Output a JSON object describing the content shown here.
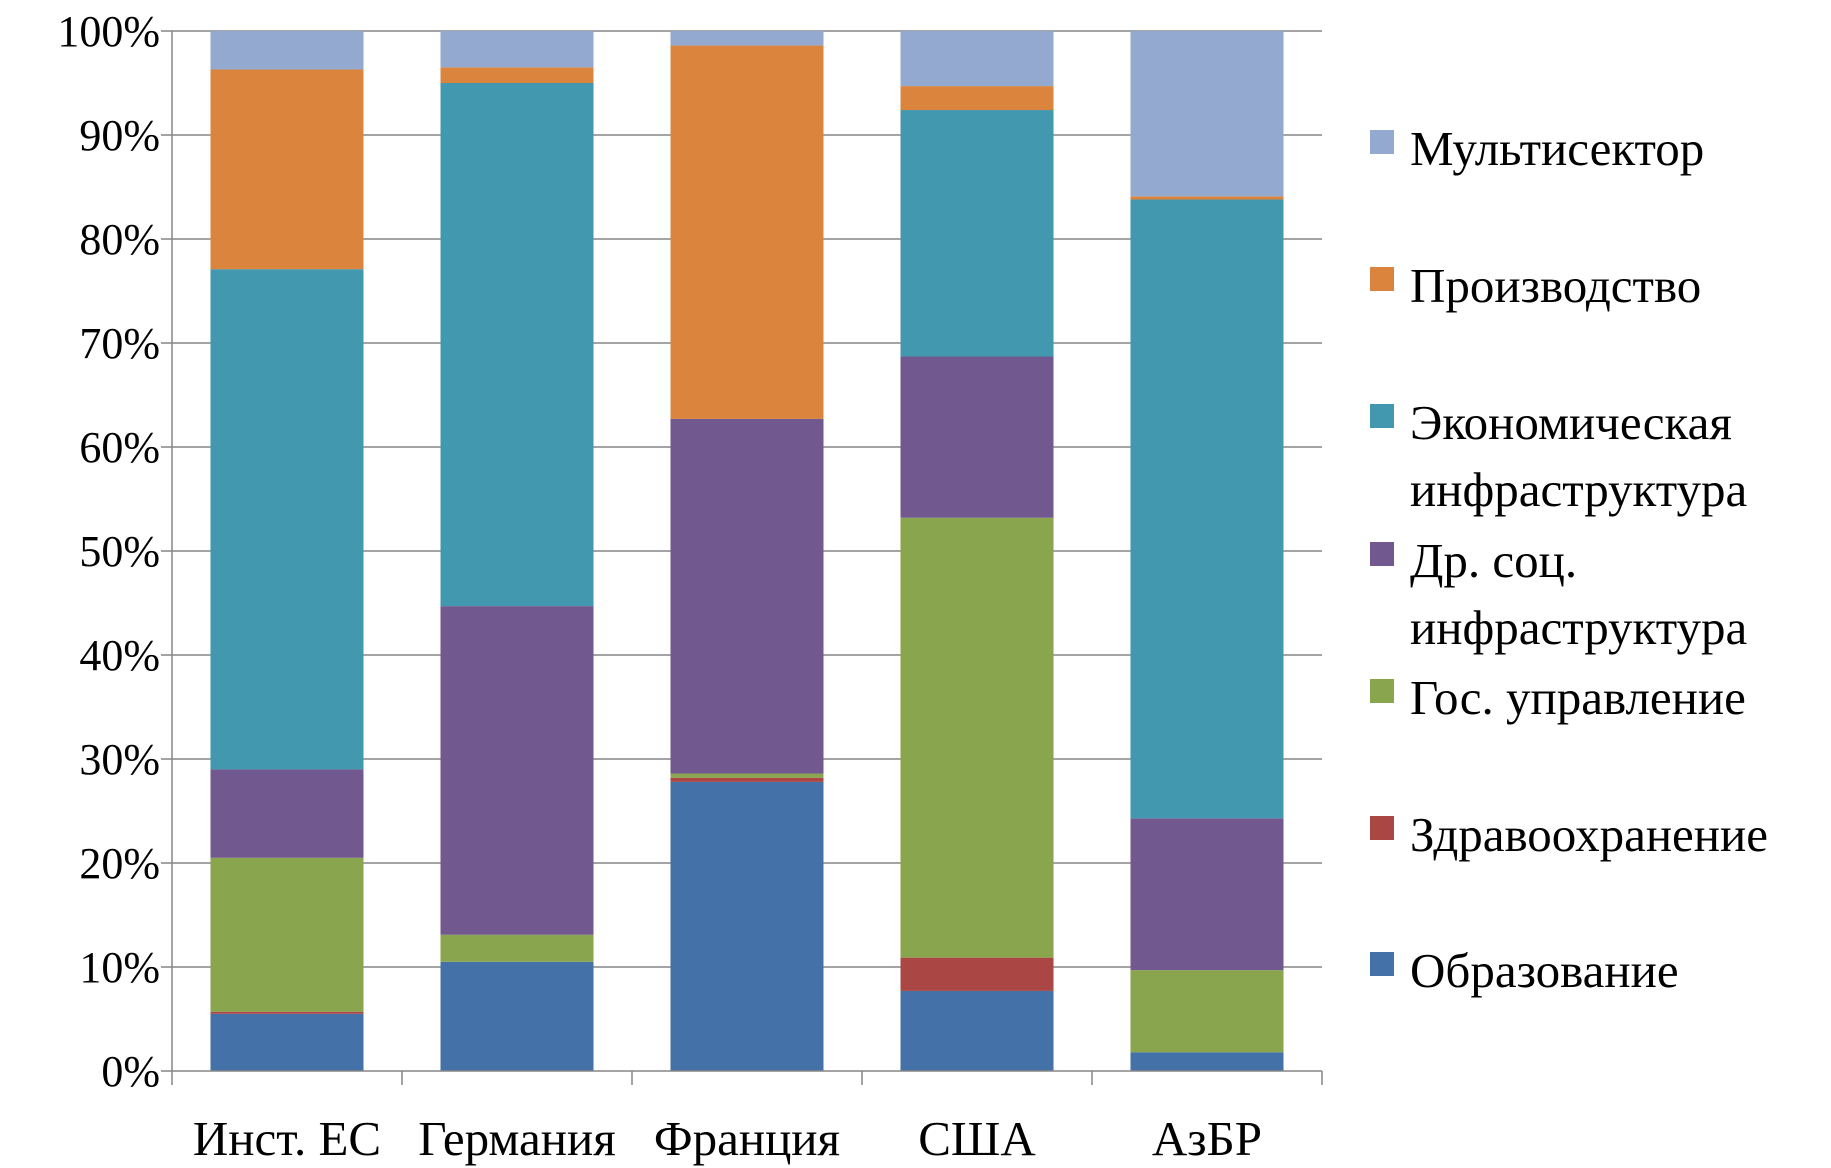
{
  "chart_data": {
    "type": "bar",
    "stacked": true,
    "percent": true,
    "categories": [
      "Инст. ЕС",
      "Германия",
      "Франция",
      "США",
      "АзБР"
    ],
    "ylim": [
      0,
      100
    ],
    "yticks": [
      "0%",
      "10%",
      "20%",
      "30%",
      "40%",
      "50%",
      "60%",
      "70%",
      "80%",
      "90%",
      "100%"
    ],
    "grid": true,
    "legend_position": "right",
    "series": [
      {
        "name": "Образование",
        "color": "#4472a8",
        "values": [
          5.5,
          10.5,
          27.8,
          7.7,
          1.8
        ]
      },
      {
        "name": "Здравоохранение",
        "color": "#aa4643",
        "values": [
          0.2,
          0.0,
          0.4,
          3.2,
          0.0
        ]
      },
      {
        "name": "Гос. управление",
        "color": "#89a54e",
        "values": [
          14.8,
          2.6,
          0.4,
          42.3,
          7.9
        ]
      },
      {
        "name": "Др. соц. инфраструктура",
        "color": "#71588f",
        "values": [
          8.5,
          31.6,
          34.1,
          15.5,
          14.6
        ]
      },
      {
        "name": "Экономическая инфраструктура",
        "color": "#4198af",
        "values": [
          48.1,
          50.3,
          0.0,
          23.7,
          59.5
        ]
      },
      {
        "name": "Производство",
        "color": "#db843d",
        "values": [
          19.2,
          1.5,
          35.9,
          2.3,
          0.3
        ]
      },
      {
        "name": "Мультисектор",
        "color": "#93a9cf",
        "values": [
          3.7,
          3.5,
          1.4,
          5.3,
          15.9
        ]
      }
    ]
  },
  "legend": [
    {
      "label_lines": [
        "Мультисектор"
      ],
      "color": "#93a9cf"
    },
    {
      "label_lines": [
        "Производство"
      ],
      "color": "#db843d"
    },
    {
      "label_lines": [
        "Экономическая",
        "инфраструктура"
      ],
      "color": "#4198af"
    },
    {
      "label_lines": [
        "Др. соц.",
        "инфраструктура"
      ],
      "color": "#71588f"
    },
    {
      "label_lines": [
        "Гос. управление"
      ],
      "color": "#89a54e"
    },
    {
      "label_lines": [
        "Здравоохранение"
      ],
      "color": "#aa4643"
    },
    {
      "label_lines": [
        "Образование"
      ],
      "color": "#4472a8"
    }
  ]
}
